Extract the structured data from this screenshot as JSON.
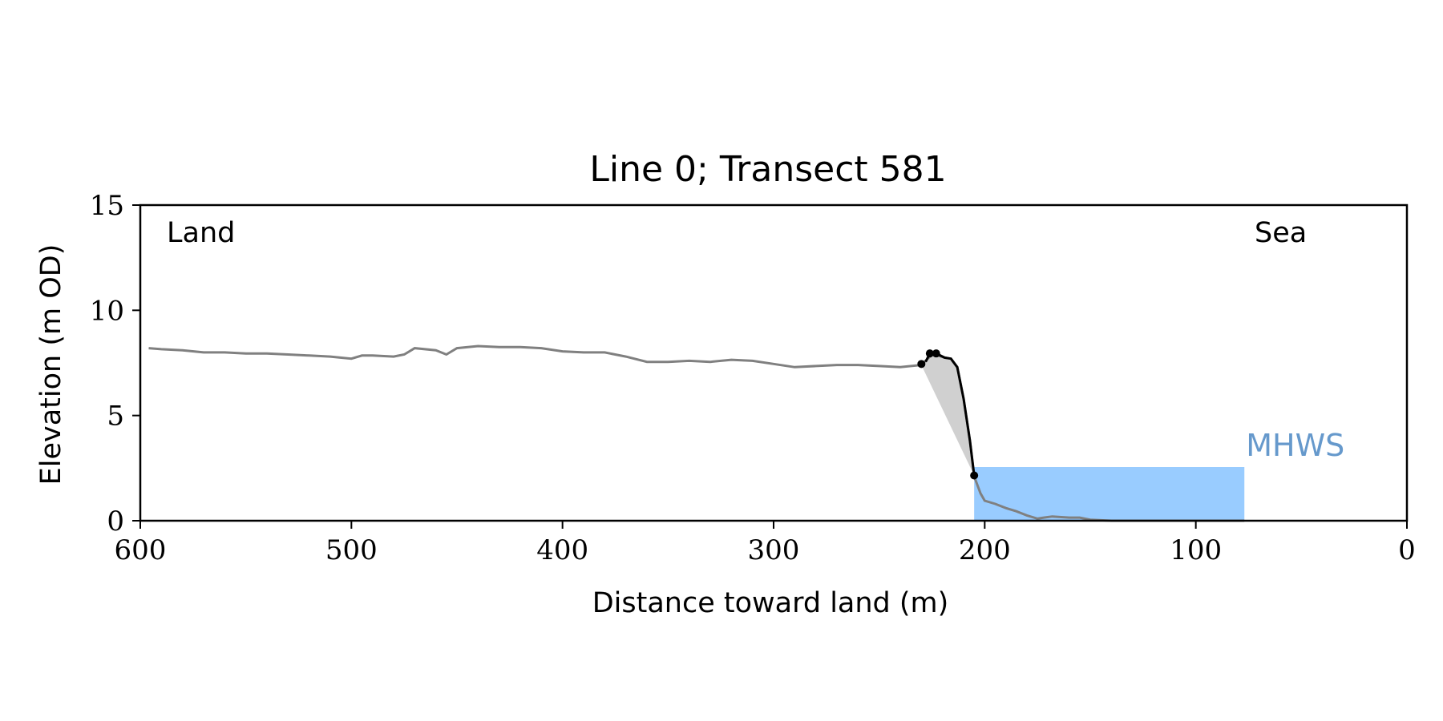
{
  "chart_data": {
    "type": "line",
    "title": "Line 0; Transect 581",
    "xlabel": "Distance toward land (m)",
    "ylabel": "Elevation (m OD)",
    "xlim": [
      600,
      0
    ],
    "ylim": [
      0,
      15
    ],
    "x_ticks": [
      600,
      500,
      400,
      300,
      200,
      100,
      0
    ],
    "y_ticks": [
      0,
      5,
      10,
      15
    ],
    "grid": false,
    "annotations": {
      "land": "Land",
      "sea": "Sea",
      "mhws": "MHWS"
    },
    "colors": {
      "profile": "#808080",
      "cliff": "#000000",
      "cliff_fill": "#d0d0d0",
      "mhws_fill": "#99ccff",
      "mhws_text": "#6699cc",
      "axis": "#000000"
    },
    "profile": {
      "x": [
        596,
        590,
        580,
        570,
        560,
        550,
        540,
        530,
        520,
        510,
        500,
        495,
        490,
        480,
        475,
        470,
        460,
        455,
        450,
        440,
        430,
        420,
        410,
        400,
        390,
        380,
        370,
        360,
        350,
        340,
        330,
        320,
        310,
        300,
        290,
        280,
        270,
        260,
        250,
        240,
        230,
        225,
        222,
        219,
        216,
        213,
        210,
        207,
        205,
        202,
        200,
        195,
        190,
        185,
        180,
        175,
        172,
        168,
        160,
        155,
        150,
        140,
        130,
        120,
        110,
        100,
        90,
        80,
        77
      ],
      "y": [
        8.2,
        8.15,
        8.1,
        8.0,
        8.0,
        7.95,
        7.95,
        7.9,
        7.85,
        7.8,
        7.7,
        7.85,
        7.85,
        7.8,
        7.9,
        8.2,
        8.1,
        7.9,
        8.2,
        8.3,
        8.25,
        8.25,
        8.2,
        8.05,
        8.0,
        8.0,
        7.8,
        7.55,
        7.55,
        7.6,
        7.55,
        7.65,
        7.6,
        7.45,
        7.3,
        7.35,
        7.4,
        7.4,
        7.35,
        7.3,
        7.4,
        7.9,
        7.85,
        7.75,
        7.7,
        7.3,
        5.8,
        3.8,
        2.1,
        1.3,
        0.95,
        0.8,
        0.6,
        0.45,
        0.25,
        0.1,
        0.15,
        0.2,
        0.15,
        0.15,
        0.05,
        0.0,
        0.0,
        0.0,
        0.0,
        0.0,
        0.0,
        0.0,
        0.0
      ]
    },
    "cliff_top": {
      "x": [
        230,
        228,
        226,
        224,
        222,
        219,
        216,
        213,
        210,
        207,
        205
      ],
      "y": [
        7.4,
        7.55,
        7.95,
        8.0,
        7.9,
        7.75,
        7.7,
        7.3,
        5.8,
        3.8,
        2.15
      ]
    },
    "cliff_points": {
      "x": [
        230,
        226,
        223,
        205
      ],
      "y": [
        7.45,
        7.95,
        7.95,
        2.15
      ]
    },
    "mhws": {
      "level": 2.55,
      "x_start": 205,
      "x_end": 77
    }
  }
}
